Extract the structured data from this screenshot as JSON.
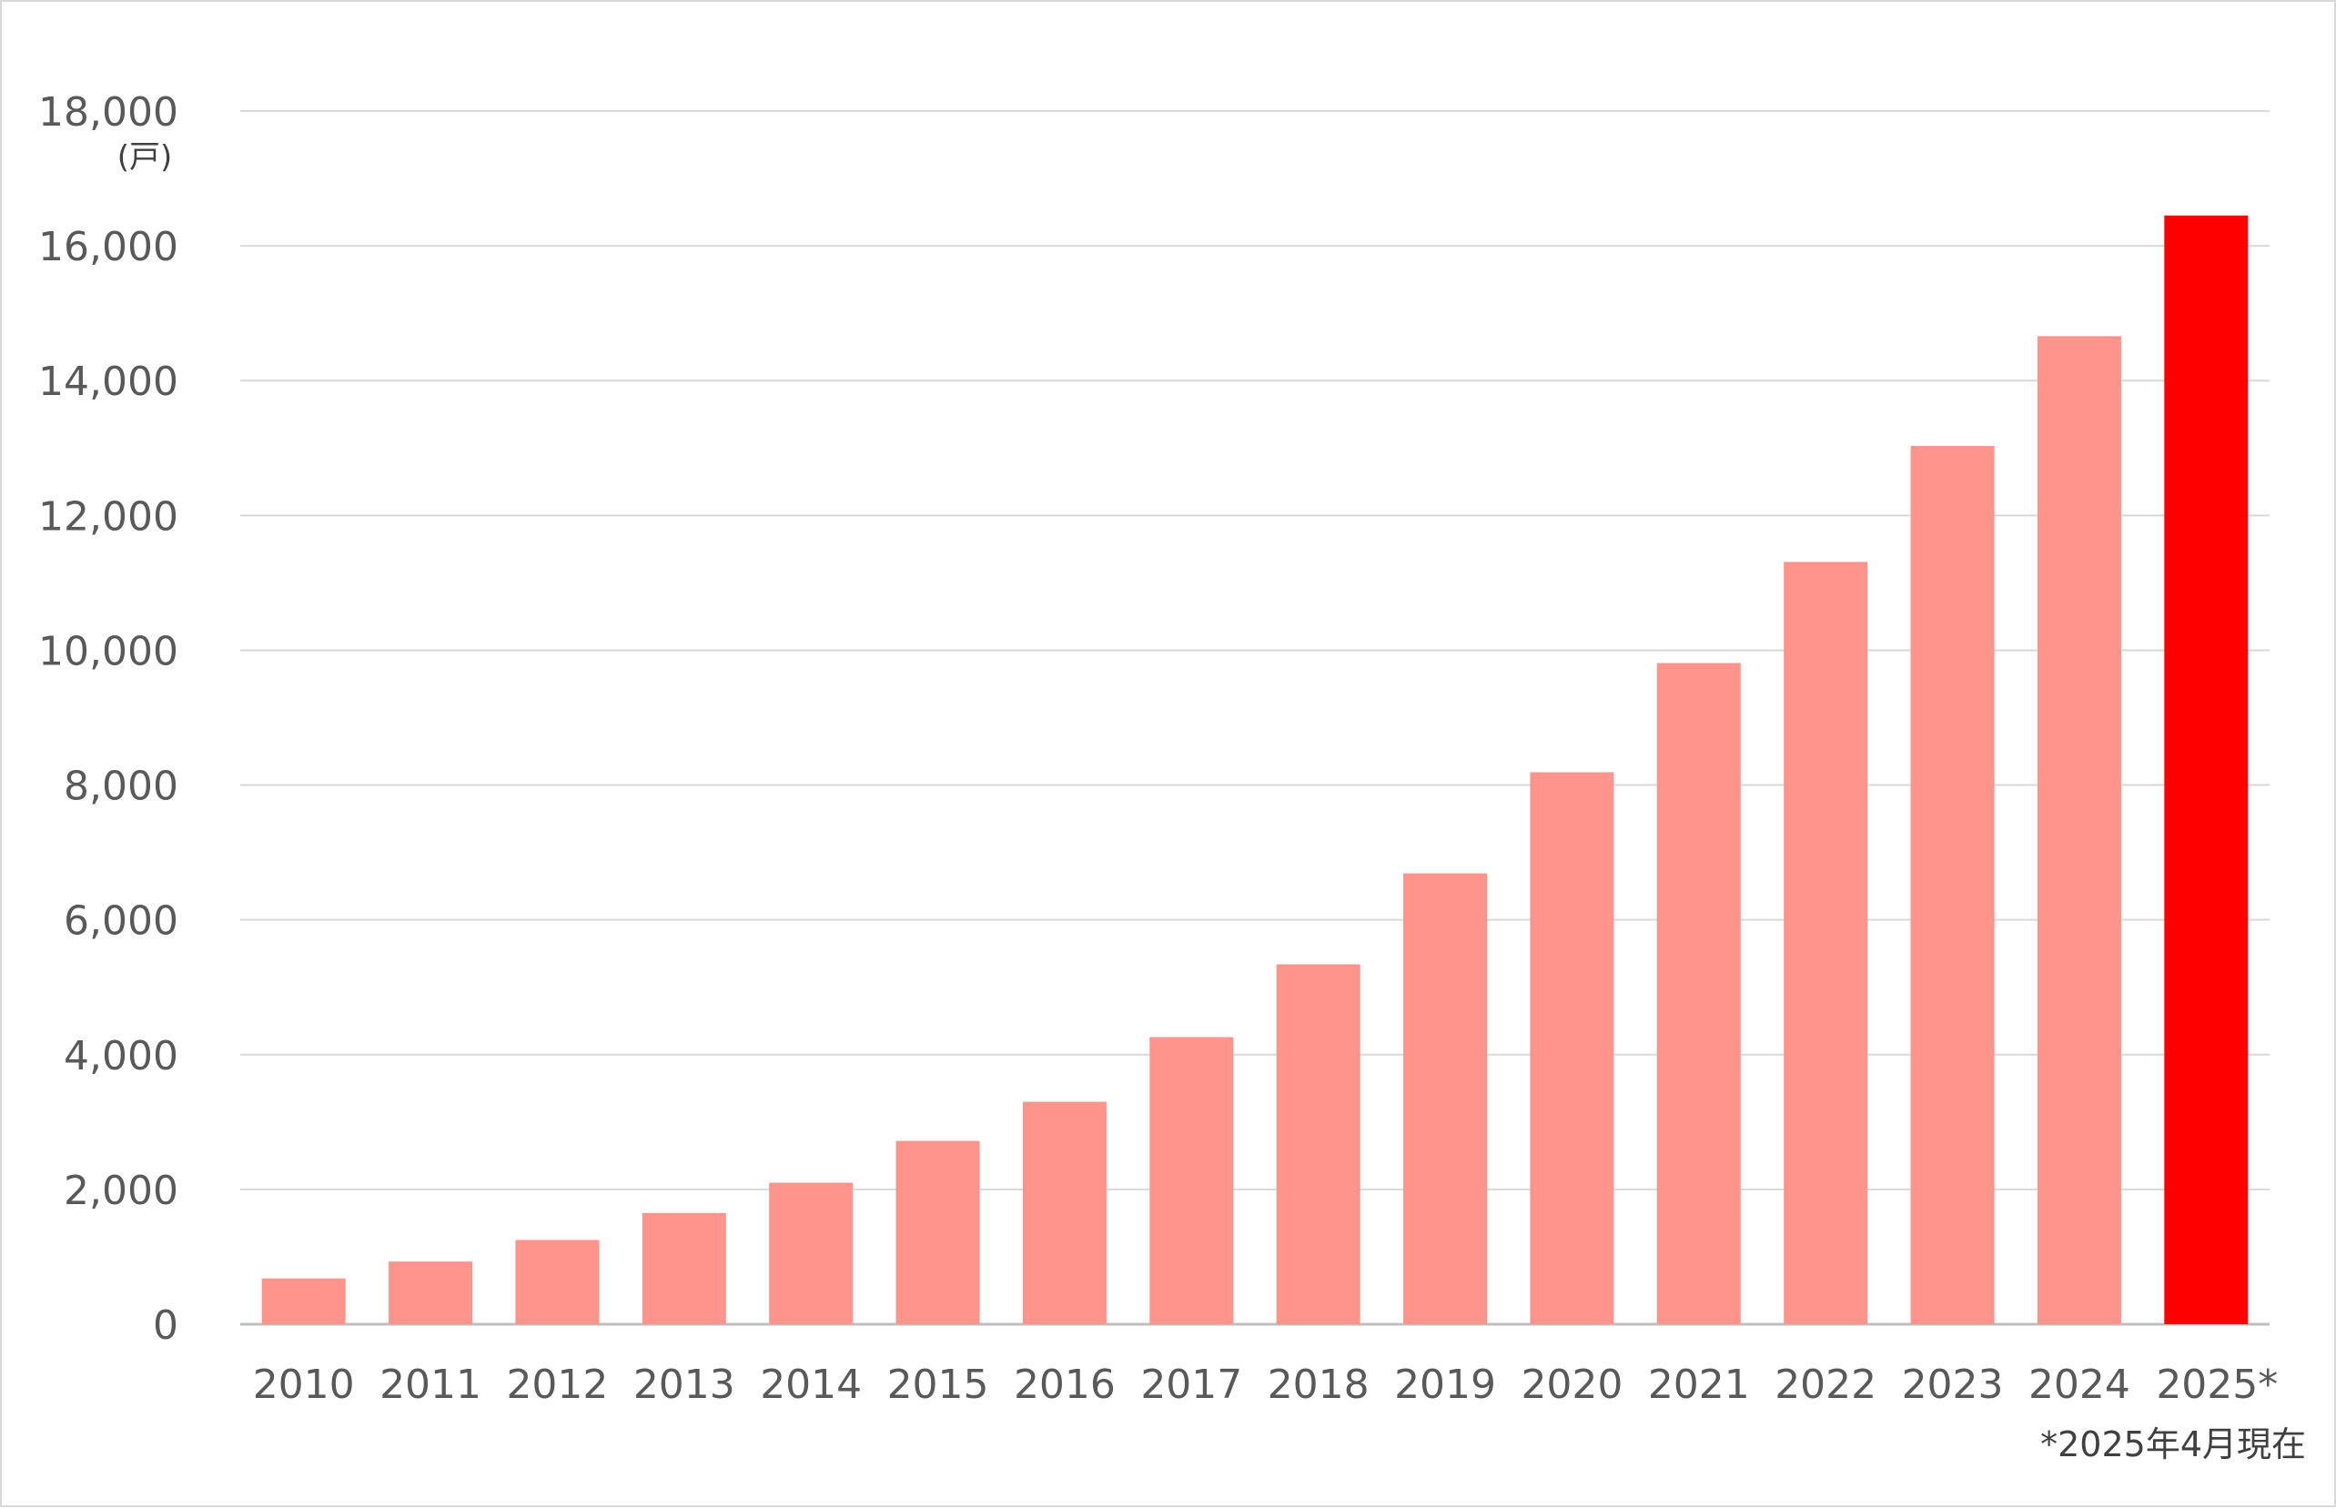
{
  "chart_data": {
    "type": "bar",
    "title": "",
    "xlabel": "",
    "ylabel": "",
    "y_unit": "(戸)",
    "categories": [
      "2010",
      "2011",
      "2012",
      "2013",
      "2014",
      "2015",
      "2016",
      "2017",
      "2018",
      "2019",
      "2020",
      "2021",
      "2022",
      "2023",
      "2024",
      "2025*"
    ],
    "values": [
      680,
      930,
      1250,
      1650,
      2100,
      2720,
      3300,
      4260,
      5340,
      6690,
      8190,
      9810,
      11310,
      13030,
      14660,
      16450
    ],
    "highlight_index": 15,
    "ylim": [
      0,
      18000
    ],
    "yticks": [
      0,
      2000,
      4000,
      6000,
      8000,
      10000,
      12000,
      14000,
      16000,
      18000
    ],
    "ytick_labels": [
      "0",
      "2,000",
      "4,000",
      "6,000",
      "8,000",
      "10,000",
      "12,000",
      "14,000",
      "16,000",
      "18,000"
    ],
    "grid": true,
    "legend": "none",
    "colors": {
      "bar": "#ff948c",
      "highlight": "#ff0000",
      "grid": "#d9d9d9",
      "text": "#595959"
    },
    "footnote": "*2025年4月現在"
  }
}
